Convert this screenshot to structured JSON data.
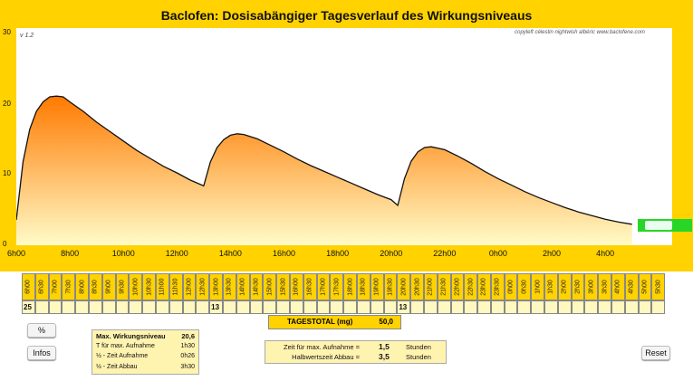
{
  "title": "Baclofen: Dosisabängiger Tagesverlauf des Wirkungsniveaus",
  "version": "v 1.2",
  "copyright": "copyleft  célestin  nightwish  albéric  www.baclofene.com",
  "chart_data": {
    "type": "area",
    "title": "Baclofen: Dosisabängiger Tagesverlauf des Wirkungsniveaus",
    "xlabel": "",
    "ylabel": "",
    "ylim": [
      0,
      30
    ],
    "xlim": [
      6,
      30.5
    ],
    "x_tick_labels": [
      "6h00",
      "8h00",
      "10h00",
      "12h00",
      "14h00",
      "16h00",
      "18h00",
      "20h00",
      "22h00",
      "0h00",
      "2h00",
      "4h00"
    ],
    "y_ticks": [
      0,
      10,
      20,
      30
    ],
    "series": [
      {
        "x": [
          6.0,
          6.25,
          6.5,
          6.75,
          7.0,
          7.25,
          7.5,
          7.75,
          8.0,
          8.5,
          9.0,
          9.5,
          10.0,
          10.5,
          11.0,
          11.5,
          12.0,
          12.5,
          13.0,
          13.25,
          13.5,
          13.75,
          14.0,
          14.25,
          14.5,
          15.0,
          15.5,
          16.0,
          16.5,
          17.0,
          17.5,
          18.0,
          18.5,
          19.0,
          19.5,
          20.0,
          20.25,
          20.5,
          20.75,
          21.0,
          21.25,
          21.5,
          22.0,
          22.5,
          23.0,
          23.5,
          24.0,
          24.5,
          25.0,
          25.5,
          26.0,
          26.5,
          27.0,
          27.5,
          28.0,
          28.5,
          29.0
        ],
        "values": [
          3.5,
          11.5,
          16.0,
          18.5,
          19.8,
          20.5,
          20.6,
          20.5,
          19.8,
          18.5,
          17.0,
          15.7,
          14.4,
          13.1,
          12.0,
          10.9,
          10.0,
          9.0,
          8.2,
          11.5,
          13.5,
          14.6,
          15.2,
          15.4,
          15.3,
          14.7,
          13.8,
          12.9,
          11.9,
          11.0,
          10.2,
          9.4,
          8.6,
          7.8,
          7.0,
          6.3,
          5.5,
          9.2,
          11.6,
          12.9,
          13.5,
          13.6,
          13.2,
          12.3,
          11.3,
          10.2,
          9.2,
          8.3,
          7.4,
          6.6,
          5.9,
          5.2,
          4.6,
          4.1,
          3.6,
          3.2,
          2.9
        ]
      }
    ],
    "colors": {
      "fill_top": "#FF7A00",
      "fill_bottom": "#FFFBC8",
      "line": "#111111"
    },
    "grid": false
  },
  "table": {
    "hours": [
      "6h00",
      "6h30",
      "7h00",
      "7h30",
      "8h00",
      "8h30",
      "9h00",
      "9h30",
      "10h00",
      "10h30",
      "11h00",
      "11h30",
      "12h00",
      "12h30",
      "13h00",
      "13h30",
      "14h00",
      "14h30",
      "15h00",
      "15h30",
      "16h00",
      "16h30",
      "17h00",
      "17h30",
      "18h00",
      "18h30",
      "19h00",
      "19h30",
      "20h00",
      "20h30",
      "21h00",
      "21h30",
      "22h00",
      "22h30",
      "23h00",
      "23h30",
      "0h00",
      "0h30",
      "1h00",
      "1h30",
      "2h00",
      "2h30",
      "3h00",
      "3h30",
      "4h00",
      "4h30",
      "5h00",
      "5h30"
    ],
    "doses": [
      "25",
      "",
      "",
      "",
      "",
      "",
      "",
      "",
      "",
      "",
      "",
      "",
      "",
      "",
      "13",
      "",
      "",
      "",
      "",
      "",
      "",
      "",
      "",
      "",
      "",
      "",
      "",
      "",
      "13",
      "",
      "",
      "",
      "",
      "",
      "",
      "",
      "",
      "",
      "",
      "",
      "",
      "",
      "",
      "",
      "",
      "",
      "",
      ""
    ],
    "total_label": "TAGESTOTAL (mg)",
    "total_value": "50,0"
  },
  "buttons": {
    "percent": "%",
    "infos": "Infos",
    "reset": "Reset"
  },
  "stats": {
    "max_label": "Max. Wirkungsniveau",
    "max_value": "20,6",
    "tmax_label": "T für max. Aufnahme",
    "tmax_value": "1h30",
    "half_up_label": "½ - Zeit Aufnahme",
    "half_up_value": "0h26",
    "half_down_label": "½ - Zeit Abbau",
    "half_down_value": "3h30"
  },
  "params": {
    "tmax_label": "Zeit für max. Aufnahme =",
    "tmax_value": "1,5",
    "tmax_unit": "Stunden",
    "half_label": "Halbwertszeit Abbau =",
    "half_value": "3,5",
    "half_unit": "Stunden"
  }
}
